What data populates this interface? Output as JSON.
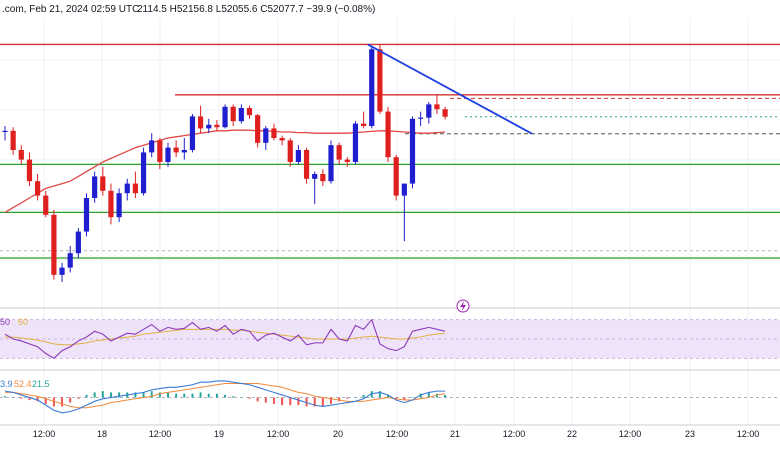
{
  "header": {
    "prefix": ".com, Feb 21, 2024 02:59 UTC",
    "ohlc": "2114.5  H52156.8  L52055.6  C52077.7  −39.9 (−0.08%)"
  },
  "rsi_labels": {
    "a": "50",
    "b": "60"
  },
  "macd_labels": {
    "a": "3.9",
    "b": "52.4",
    "c": "21.5"
  },
  "colors": {
    "up": "#1f1fcf",
    "down": "#e01f1f",
    "ma": "#e04848",
    "support": "#2e9e2e",
    "resistance": "#d32f2f",
    "trend": "#1f3fdf",
    "rsi": "#8a3ab9",
    "rsi_ma": "#e0b040",
    "rsi_band": "#efe3fa",
    "macd": "#3a7bd5",
    "signal": "#f08a3c",
    "hist_up": "#26a69a",
    "hist_down": "#ef5350"
  },
  "chart_data": {
    "type": "candlestick",
    "x_ticks": [
      "12:00",
      "18",
      "12:00",
      "19",
      "12:00",
      "20",
      "12:00",
      "21",
      "12:00",
      "22",
      "12:00",
      "23",
      "12:00"
    ],
    "candles": [
      {
        "o": 51950,
        "h": 52000,
        "l": 51880,
        "c": 51960
      },
      {
        "o": 51960,
        "h": 51990,
        "l": 51760,
        "c": 51800
      },
      {
        "o": 51800,
        "h": 51840,
        "l": 51680,
        "c": 51720
      },
      {
        "o": 51720,
        "h": 51780,
        "l": 51500,
        "c": 51540
      },
      {
        "o": 51540,
        "h": 51600,
        "l": 51380,
        "c": 51420
      },
      {
        "o": 51420,
        "h": 51460,
        "l": 51240,
        "c": 51260
      },
      {
        "o": 51260,
        "h": 51300,
        "l": 50720,
        "c": 50760
      },
      {
        "o": 50760,
        "h": 50860,
        "l": 50700,
        "c": 50820
      },
      {
        "o": 50820,
        "h": 51000,
        "l": 50780,
        "c": 50940
      },
      {
        "o": 50940,
        "h": 51150,
        "l": 50900,
        "c": 51120
      },
      {
        "o": 51120,
        "h": 51440,
        "l": 51080,
        "c": 51400
      },
      {
        "o": 51400,
        "h": 51620,
        "l": 51360,
        "c": 51580
      },
      {
        "o": 51580,
        "h": 51660,
        "l": 51420,
        "c": 51460
      },
      {
        "o": 51460,
        "h": 51520,
        "l": 51180,
        "c": 51240
      },
      {
        "o": 51240,
        "h": 51480,
        "l": 51200,
        "c": 51440
      },
      {
        "o": 51440,
        "h": 51560,
        "l": 51380,
        "c": 51520
      },
      {
        "o": 51520,
        "h": 51620,
        "l": 51400,
        "c": 51440
      },
      {
        "o": 51440,
        "h": 51820,
        "l": 51420,
        "c": 51780
      },
      {
        "o": 51780,
        "h": 51940,
        "l": 51740,
        "c": 51880
      },
      {
        "o": 51880,
        "h": 51900,
        "l": 51640,
        "c": 51700
      },
      {
        "o": 51700,
        "h": 51860,
        "l": 51660,
        "c": 51820
      },
      {
        "o": 51820,
        "h": 51880,
        "l": 51740,
        "c": 51780
      },
      {
        "o": 51780,
        "h": 51900,
        "l": 51720,
        "c": 51800
      },
      {
        "o": 51800,
        "h": 52100,
        "l": 51780,
        "c": 52080
      },
      {
        "o": 52080,
        "h": 52170,
        "l": 51940,
        "c": 51980
      },
      {
        "o": 51980,
        "h": 52060,
        "l": 51940,
        "c": 52010
      },
      {
        "o": 52010,
        "h": 52050,
        "l": 51960,
        "c": 51990
      },
      {
        "o": 51990,
        "h": 52180,
        "l": 51980,
        "c": 52160
      },
      {
        "o": 52160,
        "h": 52180,
        "l": 52000,
        "c": 52040
      },
      {
        "o": 52040,
        "h": 52180,
        "l": 52020,
        "c": 52150
      },
      {
        "o": 52150,
        "h": 52170,
        "l": 52060,
        "c": 52090
      },
      {
        "o": 52090,
        "h": 52100,
        "l": 51820,
        "c": 51860
      },
      {
        "o": 51860,
        "h": 52000,
        "l": 51800,
        "c": 51980
      },
      {
        "o": 51980,
        "h": 52020,
        "l": 51880,
        "c": 51900
      },
      {
        "o": 51900,
        "h": 51920,
        "l": 51840,
        "c": 51880
      },
      {
        "o": 51880,
        "h": 51900,
        "l": 51660,
        "c": 51700
      },
      {
        "o": 51700,
        "h": 51840,
        "l": 51680,
        "c": 51800
      },
      {
        "o": 51800,
        "h": 51820,
        "l": 51520,
        "c": 51560
      },
      {
        "o": 51560,
        "h": 51620,
        "l": 51350,
        "c": 51600
      },
      {
        "o": 51600,
        "h": 51640,
        "l": 51500,
        "c": 51540
      },
      {
        "o": 51540,
        "h": 51880,
        "l": 51520,
        "c": 51840
      },
      {
        "o": 51840,
        "h": 51860,
        "l": 51680,
        "c": 51720
      },
      {
        "o": 51720,
        "h": 51740,
        "l": 51660,
        "c": 51700
      },
      {
        "o": 51700,
        "h": 52040,
        "l": 51680,
        "c": 52020
      },
      {
        "o": 52020,
        "h": 52120,
        "l": 51980,
        "c": 52000
      },
      {
        "o": 52000,
        "h": 52660,
        "l": 51980,
        "c": 52640
      },
      {
        "o": 52640,
        "h": 52680,
        "l": 52100,
        "c": 52120
      },
      {
        "o": 52120,
        "h": 52160,
        "l": 51700,
        "c": 51740
      },
      {
        "o": 51740,
        "h": 51760,
        "l": 51380,
        "c": 51420
      },
      {
        "o": 51420,
        "h": 51520,
        "l": 51040,
        "c": 51520
      },
      {
        "o": 51520,
        "h": 52080,
        "l": 51480,
        "c": 52060
      },
      {
        "o": 52060,
        "h": 52120,
        "l": 52000,
        "c": 52070
      },
      {
        "o": 52070,
        "h": 52200,
        "l": 52020,
        "c": 52180
      },
      {
        "o": 52180,
        "h": 52260,
        "l": 52100,
        "c": 52140
      },
      {
        "o": 52140,
        "h": 52160,
        "l": 52055,
        "c": 52077
      }
    ],
    "ma_curve": [
      51280,
      51320,
      51360,
      51400,
      51440,
      51480,
      51500,
      51520,
      51540,
      51580,
      51620,
      51660,
      51700,
      51730,
      51760,
      51790,
      51820,
      51840,
      51860,
      51880,
      51900,
      51910,
      51920,
      51930,
      51940,
      51950,
      51960,
      51960,
      51965,
      51965,
      51965,
      51960,
      51960,
      51955,
      51950,
      51950,
      51945,
      51945,
      51940,
      51940,
      51940,
      51940,
      51940,
      51945,
      51950,
      51955,
      51960,
      51960,
      51955,
      51950,
      51945,
      51940,
      51940,
      51945,
      51950
    ],
    "horizontal_levels": [
      {
        "kind": "resistance",
        "value": 52680
      },
      {
        "kind": "resistance",
        "value": 52260
      },
      {
        "kind": "resistance_dashed",
        "value": 52230
      },
      {
        "kind": "price_dotted",
        "value": 52077
      },
      {
        "kind": "dashed",
        "value": 51935
      },
      {
        "kind": "support",
        "value": 51680
      },
      {
        "kind": "support",
        "value": 51280
      },
      {
        "kind": "dashed_gray",
        "value": 50960
      },
      {
        "kind": "support",
        "value": 50900
      }
    ],
    "trend_line": {
      "from": {
        "index": 45,
        "value": 52680
      },
      "to": {
        "index": 61,
        "value": 51935
      }
    },
    "rsi": [
      55,
      50,
      48,
      45,
      42,
      35,
      30,
      38,
      42,
      48,
      52,
      58,
      55,
      48,
      52,
      56,
      55,
      60,
      65,
      58,
      62,
      60,
      61,
      67,
      60,
      62,
      58,
      64,
      55,
      60,
      58,
      48,
      54,
      56,
      52,
      48,
      54,
      44,
      46,
      46,
      60,
      50,
      48,
      64,
      60,
      70,
      45,
      40,
      38,
      42,
      58,
      60,
      62,
      60,
      58
    ],
    "rsi_ma": [
      52,
      52,
      51,
      50,
      49,
      47,
      45,
      44,
      44,
      45,
      46,
      48,
      49,
      50,
      51,
      52,
      53,
      55,
      56,
      57,
      58,
      59,
      60,
      60,
      60,
      60,
      60,
      60,
      59,
      59,
      58,
      57,
      56,
      55,
      54,
      53,
      52,
      51,
      50,
      50,
      50,
      50,
      50,
      51,
      52,
      53,
      52,
      51,
      50,
      50,
      51,
      52,
      54,
      55,
      56
    ],
    "macd": [
      5,
      4,
      2,
      0,
      -2,
      -6,
      -10,
      -12,
      -11,
      -9,
      -6,
      -3,
      -1,
      0,
      1,
      2,
      3,
      4,
      6,
      7,
      8,
      8,
      9,
      10,
      12,
      12,
      13,
      13,
      12,
      11,
      10,
      8,
      6,
      4,
      2,
      0,
      -2,
      -4,
      -6,
      -7,
      -6,
      -5,
      -4,
      -3,
      -1,
      3,
      4,
      2,
      -2,
      -4,
      -2,
      2,
      4,
      5,
      5
    ],
    "signal": [
      4,
      4,
      3,
      2,
      1,
      -1,
      -3,
      -5,
      -7,
      -8,
      -8,
      -7,
      -6,
      -4,
      -3,
      -2,
      -1,
      0,
      1,
      3,
      4,
      5,
      6,
      7,
      8,
      9,
      10,
      11,
      11,
      11,
      11,
      11,
      10,
      9,
      8,
      6,
      4,
      3,
      1,
      0,
      -1,
      -2,
      -3,
      -3,
      -3,
      -2,
      -1,
      0,
      -1,
      -2,
      -2,
      -1,
      0,
      2,
      3
    ],
    "rsi_range": [
      20,
      80
    ],
    "macd_range": [
      -20,
      20
    ]
  }
}
